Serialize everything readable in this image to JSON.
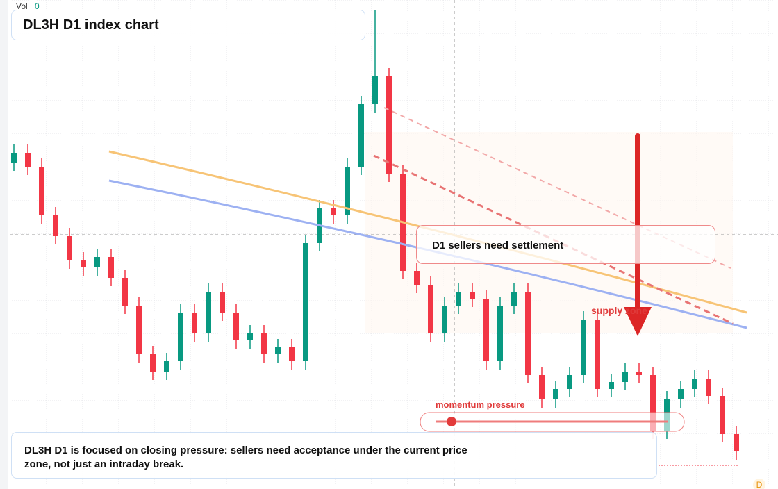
{
  "header": {
    "vol_label": "Vol",
    "vol_value": 0,
    "title": "DL3H D1 index chart"
  },
  "chart_data": {
    "type": "candlestick",
    "open": [
      470,
      484,
      464,
      394,
      364,
      329,
      319,
      334,
      304,
      264,
      194,
      169,
      184,
      254,
      224,
      284,
      254,
      214,
      224,
      194,
      204,
      184,
      354,
      404,
      394,
      464,
      554,
      594,
      454,
      314,
      294,
      224,
      264,
      284,
      274,
      184,
      264,
      284,
      164,
      129,
      144,
      164,
      244,
      144,
      154,
      169,
      164,
      84,
      129,
      144,
      159,
      134,
      79
    ],
    "high": [
      496,
      496,
      476,
      406,
      376,
      341,
      346,
      346,
      316,
      276,
      206,
      196,
      266,
      266,
      296,
      296,
      266,
      236,
      236,
      216,
      216,
      366,
      416,
      416,
      476,
      566,
      690,
      606,
      466,
      326,
      306,
      276,
      296,
      296,
      286,
      276,
      296,
      296,
      176,
      156,
      176,
      256,
      256,
      166,
      181,
      181,
      176,
      141,
      156,
      171,
      171,
      146,
      91
    ],
    "low": [
      458,
      452,
      382,
      352,
      317,
      307,
      307,
      292,
      252,
      182,
      157,
      157,
      172,
      212,
      212,
      242,
      202,
      202,
      182,
      182,
      172,
      172,
      342,
      382,
      382,
      452,
      542,
      442,
      302,
      282,
      212,
      212,
      252,
      262,
      172,
      172,
      252,
      152,
      117,
      117,
      132,
      152,
      132,
      132,
      142,
      152,
      72,
      72,
      117,
      132,
      122,
      67,
      42
    ],
    "close": [
      484,
      464,
      394,
      364,
      329,
      319,
      334,
      304,
      264,
      194,
      169,
      184,
      254,
      224,
      284,
      254,
      214,
      224,
      194,
      204,
      184,
      354,
      404,
      394,
      464,
      554,
      594,
      454,
      314,
      294,
      224,
      264,
      284,
      274,
      184,
      264,
      284,
      164,
      129,
      144,
      164,
      244,
      144,
      154,
      169,
      164,
      84,
      129,
      144,
      159,
      134,
      79,
      54
    ],
    "up_color": "#089981",
    "down_color": "#f23645"
  },
  "annotations": {
    "settlement": "D1 sellers need settlement",
    "supply": "supply zone",
    "momentum": "momentum pressure",
    "badge": "D"
  },
  "footer": {
    "text": "DL3H D1 is focused on closing pressure: sellers need acceptance under the current price zone, not just an intraday break."
  }
}
